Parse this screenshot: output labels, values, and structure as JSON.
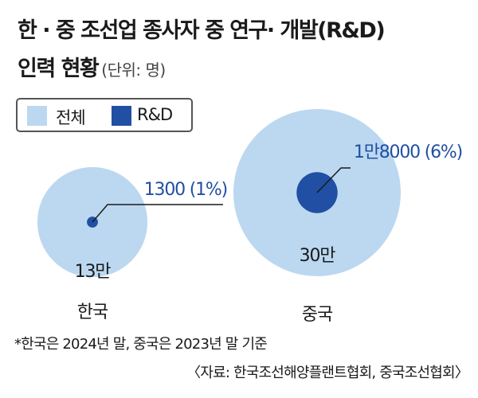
{
  "title": {
    "line1": "한 · 중 조선업 종사자 중 연구· 개발(R&D)",
    "line2": "인력 현황",
    "unit": "(단위: 명)"
  },
  "legend": [
    {
      "label": "전체",
      "color": "#bcd8f0"
    },
    {
      "label": "R&D",
      "color": "#214fa3"
    }
  ],
  "chart_data": {
    "type": "bubble",
    "series": [
      {
        "name": "전체",
        "color": "#bcd8f0"
      },
      {
        "name": "R&D",
        "color": "#214fa3"
      }
    ],
    "categories": [
      "한국",
      "중국"
    ],
    "items": [
      {
        "country": "한국",
        "total": 130000,
        "total_label": "13만",
        "rd": 1300,
        "rd_label": "1300 (1%)",
        "rd_share_pct": 1
      },
      {
        "country": "중국",
        "total": 300000,
        "total_label": "30만",
        "rd": 18000,
        "rd_label": "1만8000 (6%)",
        "rd_share_pct": 6
      }
    ]
  },
  "footnote": "*한국은 2024년 말, 중국은 2023년 말 기준",
  "source": "〈자료: 한국조선해양플랜트협회, 중국조선협회〉",
  "colors": {
    "total": "#bcd8f0",
    "rd": "#214fa3",
    "leader": "#1a1a1a"
  }
}
